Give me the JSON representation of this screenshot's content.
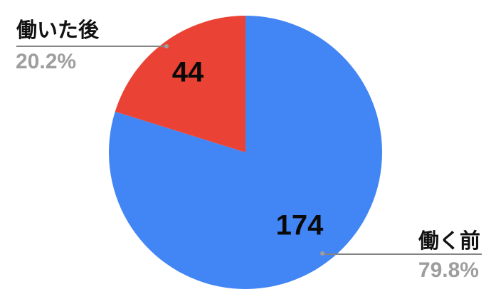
{
  "chart_data": {
    "type": "pie",
    "title": "",
    "start_angle_deg": 0,
    "direction": "clockwise",
    "legend_position": "external-callouts",
    "slices": [
      {
        "label": "働く前",
        "value": 174,
        "percent": "79.8%",
        "color": "#4285f4"
      },
      {
        "label": "働いた後",
        "value": 44,
        "percent": "20.2%",
        "color": "#ea4335"
      }
    ]
  },
  "colors": {
    "background": "#ffffff",
    "value_label": "#0a0a0a",
    "callout_title": "#111111",
    "callout_percent": "#9e9e9e",
    "leader_line": "#858585",
    "leader_dot": "#9e9e9e"
  }
}
